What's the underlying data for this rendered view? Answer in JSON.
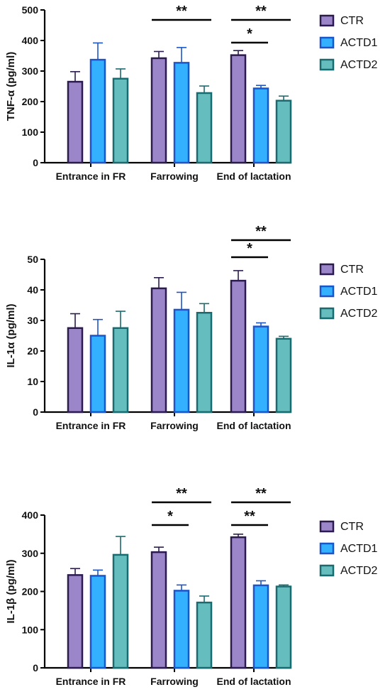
{
  "colors": {
    "CTR_fill": "#9b86c9",
    "CTR_edge": "#2c1c4e",
    "ACTD1_fill": "#33b1ff",
    "ACTD1_edge": "#1c55c8",
    "ACTD2_fill": "#66bdbd",
    "ACTD2_edge": "#1a6b70",
    "axis": "#000000",
    "sig": "#000000"
  },
  "chart_data": [
    {
      "type": "bar",
      "ylabel": "TNF-α (pg/ml)",
      "xlabel": "",
      "ylim": [
        0,
        500
      ],
      "yticks": [
        0,
        100,
        200,
        300,
        400,
        500
      ],
      "categories": [
        "Entrance in FR",
        "Farrowing",
        "End of lactation"
      ],
      "legend_position": "top-right",
      "series": [
        {
          "name": "CTR",
          "values": [
            265,
            342,
            352
          ],
          "errors": [
            33,
            22,
            15
          ]
        },
        {
          "name": "ACTD1",
          "values": [
            337,
            327,
            243
          ],
          "errors": [
            55,
            50,
            10
          ]
        },
        {
          "name": "ACTD2",
          "values": [
            275,
            228,
            203
          ],
          "errors": [
            32,
            23,
            15
          ]
        }
      ],
      "significance": [
        {
          "category": 1,
          "from": "CTR",
          "to": "ACTD2",
          "label": "**",
          "level": 2
        },
        {
          "category": 2,
          "from": "CTR",
          "to": "ACTD1",
          "label": "*",
          "level": 1
        },
        {
          "category": 2,
          "from": "CTR",
          "to": "ACTD2",
          "label": "**",
          "level": 2
        }
      ]
    },
    {
      "type": "bar",
      "ylabel": "IL-1α (pg/ml)",
      "xlabel": "",
      "ylim": [
        0,
        50
      ],
      "yticks": [
        0,
        10,
        20,
        30,
        40,
        50
      ],
      "categories": [
        "Entrance in FR",
        "Farrowing",
        "End of lactation"
      ],
      "legend_position": "top-right",
      "series": [
        {
          "name": "CTR",
          "values": [
            27.5,
            40.5,
            43
          ],
          "errors": [
            4.7,
            3.5,
            3.3
          ]
        },
        {
          "name": "ACTD1",
          "values": [
            25,
            33.5,
            28
          ],
          "errors": [
            5.3,
            5.7,
            1.2
          ]
        },
        {
          "name": "ACTD2",
          "values": [
            27.5,
            32.5,
            24
          ],
          "errors": [
            5.5,
            3,
            0.8
          ]
        }
      ],
      "significance": [
        {
          "category": 2,
          "from": "CTR",
          "to": "ACTD1",
          "label": "*",
          "level": 1
        },
        {
          "category": 2,
          "from": "CTR",
          "to": "ACTD2",
          "label": "**",
          "level": 2
        }
      ]
    },
    {
      "type": "bar",
      "ylabel": "IL-1β (pg/ml)",
      "xlabel": "",
      "ylim": [
        0,
        400
      ],
      "yticks": [
        0,
        100,
        200,
        300,
        400
      ],
      "categories": [
        "Entrance in FR",
        "Farrowing",
        "End of lactation"
      ],
      "legend_position": "top-right",
      "series": [
        {
          "name": "CTR",
          "values": [
            243,
            303,
            342
          ],
          "errors": [
            17,
            13,
            8
          ]
        },
        {
          "name": "ACTD1",
          "values": [
            241,
            202,
            216
          ],
          "errors": [
            15,
            15,
            12
          ]
        },
        {
          "name": "ACTD2",
          "values": [
            296,
            171,
            213
          ],
          "errors": [
            48,
            17,
            4
          ]
        }
      ],
      "significance": [
        {
          "category": 1,
          "from": "CTR",
          "to": "ACTD1",
          "label": "*",
          "level": 1
        },
        {
          "category": 1,
          "from": "CTR",
          "to": "ACTD2",
          "label": "**",
          "level": 2
        },
        {
          "category": 2,
          "from": "CTR",
          "to": "ACTD1",
          "label": "**",
          "level": 1
        },
        {
          "category": 2,
          "from": "CTR",
          "to": "ACTD2",
          "label": "**",
          "level": 2
        }
      ]
    }
  ]
}
